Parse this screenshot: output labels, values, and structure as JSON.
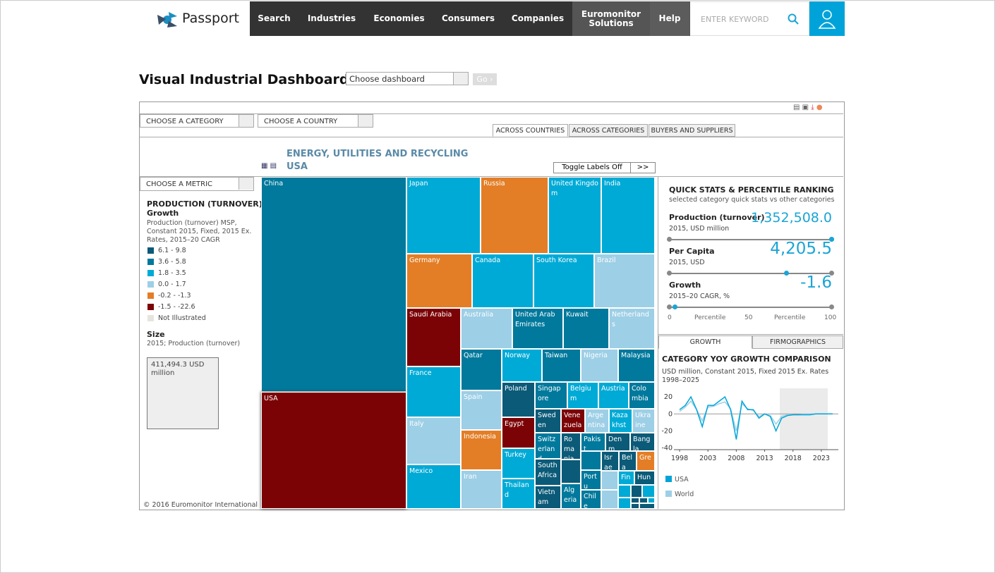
{
  "header": {
    "logo": "Passport",
    "nav": [
      "Search",
      "Industries",
      "Economies",
      "Consumers",
      "Companies",
      "Euromonitor Solutions",
      "Help"
    ],
    "search_placeholder": "ENTER KEYWORD"
  },
  "dashboard": {
    "title": "Visual Industrial Dashboard",
    "select": "Choose dashboard",
    "go": "Go ›"
  },
  "controls": {
    "category": "CHOOSE A CATEGORY",
    "country": "CHOOSE A COUNTRY",
    "tabs": [
      "ACROSS COUNTRIES",
      "ACROSS CATEGORIES",
      "BUYERS AND SUPPLIERS"
    ]
  },
  "treemap": {
    "industry": "ENERGY, UTILITIES AND RECYCLING",
    "country": "USA",
    "toggle": "Toggle Labels Off",
    "more": ">>",
    "tiles": [
      {
        "label": "China",
        "color": "#00799c"
      },
      {
        "label": "USA",
        "color": "#7b0306"
      },
      {
        "label": "Japan",
        "color": "#00aad6"
      },
      {
        "label": "Russia",
        "color": "#e37e26"
      },
      {
        "label": "United Kingdom",
        "color": "#00aad6"
      },
      {
        "label": "India",
        "color": "#00aad6"
      },
      {
        "label": "Germany",
        "color": "#e37e26"
      },
      {
        "label": "Canada",
        "color": "#00aad6"
      },
      {
        "label": "South Korea",
        "color": "#00aad6"
      },
      {
        "label": "Brazil",
        "color": "#9dcfe6"
      },
      {
        "label": "Saudi Arabia",
        "color": "#7b0306"
      },
      {
        "label": "Australia",
        "color": "#9dcfe6"
      },
      {
        "label": "United Arab Emirates",
        "color": "#00799c"
      },
      {
        "label": "Kuwait",
        "color": "#00799c"
      },
      {
        "label": "Netherlands",
        "color": "#9dcfe6"
      },
      {
        "label": "France",
        "color": "#00aad6"
      },
      {
        "label": "Qatar",
        "color": "#00799c"
      },
      {
        "label": "Norway",
        "color": "#00aad6"
      },
      {
        "label": "Taiwan",
        "color": "#00799c"
      },
      {
        "label": "Nigeria",
        "color": "#9dcfe6"
      },
      {
        "label": "Malaysia",
        "color": "#00799c"
      },
      {
        "label": "Italy",
        "color": "#9dcfe6"
      },
      {
        "label": "Spain",
        "color": "#9dcfe6"
      },
      {
        "label": "Poland",
        "color": "#0b5a78"
      },
      {
        "label": "Singapore",
        "color": "#00799c"
      },
      {
        "label": "Belgium",
        "color": "#00aad6"
      },
      {
        "label": "Austria",
        "color": "#00aad6"
      },
      {
        "label": "Colombia",
        "color": "#00799c"
      },
      {
        "label": "Indonesia",
        "color": "#e37e26"
      },
      {
        "label": "Egypt",
        "color": "#7b0306"
      },
      {
        "label": "Sweden",
        "color": "#0b5a78"
      },
      {
        "label": "Venezuela",
        "color": "#7b0306"
      },
      {
        "label": "Argentina",
        "color": "#9dcfe6"
      },
      {
        "label": "Kazakhstan",
        "color": "#00aad6"
      },
      {
        "label": "Ukraine",
        "color": "#9dcfe6"
      },
      {
        "label": "Mexico",
        "color": "#00aad6"
      },
      {
        "label": "Iran",
        "color": "#9dcfe6"
      },
      {
        "label": "Turkey",
        "color": "#00aad6"
      },
      {
        "label": "Switzerland",
        "color": "#00799c"
      },
      {
        "label": "Romania",
        "color": "#0b5a78"
      },
      {
        "label": "Pakist",
        "color": "#00799c"
      },
      {
        "label": "Denm",
        "color": "#0b5a78"
      },
      {
        "label": "Bangla",
        "color": "#0b5a78"
      },
      {
        "label": "Thailand",
        "color": "#00aad6"
      },
      {
        "label": "South Africa",
        "color": "#0b5a78"
      },
      {
        "label": "Portu",
        "color": "#00799c"
      },
      {
        "label": "Israe",
        "color": "#0b5a78"
      },
      {
        "label": "Bela",
        "color": "#0b5a78"
      },
      {
        "label": "Gre",
        "color": "#e37e26"
      },
      {
        "label": "Vietnam",
        "color": "#0b5a78"
      },
      {
        "label": "Algeria",
        "color": "#00799c"
      },
      {
        "label": "Chile",
        "color": "#00799c"
      },
      {
        "label": "Finla",
        "color": "#00aad6"
      },
      {
        "label": "Hun",
        "color": "#0b5a78"
      }
    ]
  },
  "legend_panel": {
    "metric": "CHOOSE A METRIC",
    "heading": "PRODUCTION (TURNOVER)",
    "subheading": "Growth",
    "description": "Production (turnover) MSP, Constant 2015, Fixed, 2015 Ex. Rates, 2015–20 CAGR",
    "classes": [
      {
        "label": "6.1 - 9.8",
        "color": "#0b5a78"
      },
      {
        "label": "3.6 - 5.8",
        "color": "#00799c"
      },
      {
        "label": "1.8 - 3.5",
        "color": "#00aad6"
      },
      {
        "label": "0.0 - 1.7",
        "color": "#9dcfe6"
      },
      {
        "label": "-0.2 - -1.3",
        "color": "#e37e26"
      },
      {
        "label": "-1.5 - -22.6",
        "color": "#7b0306"
      },
      {
        "label": "Not Illustrated",
        "color": "#e6e4de"
      }
    ],
    "size_heading": "Size",
    "size_description": "2015; Production (turnover)",
    "size_sample": "411,494.3 USD million",
    "copyright": "© 2016 Euromonitor International"
  },
  "quick_stats": {
    "title": "QUICK STATS & PERCENTILE RANKING",
    "subtitle": "selected category quick stats vs other categories",
    "stats": [
      {
        "name": "Production (turnover)",
        "unit": "2015, USD million",
        "value": "1,352,508.0"
      },
      {
        "name": "Per Capita",
        "unit": "2015, USD",
        "value": "4,205.5"
      },
      {
        "name": "Growth",
        "unit": "2015–20 CAGR, %",
        "value": "-1.6"
      }
    ],
    "scale": [
      "0",
      "Percentile",
      "50",
      "Percentile",
      "100"
    ]
  },
  "growth_tabs": [
    "GROWTH",
    "FIRMOGRAPHICS"
  ],
  "chart_data": {
    "type": "line",
    "title": "CATEGORY YOY GROWTH COMPARISON",
    "subtitle": "USD million, Constant 2015, Fixed 2015 Ex. Rates",
    "period": "1998–2025",
    "x": [
      1998,
      1999,
      2000,
      2001,
      2002,
      2003,
      2004,
      2005,
      2006,
      2007,
      2008,
      2009,
      2010,
      2011,
      2012,
      2013,
      2014,
      2015,
      2016,
      2017,
      2018,
      2019,
      2020,
      2021,
      2022,
      2023,
      2024,
      2025
    ],
    "series": [
      {
        "name": "USA",
        "color": "#00a5d8",
        "values": [
          5,
          10,
          20,
          5,
          -15,
          10,
          10,
          15,
          20,
          5,
          -30,
          15,
          5,
          5,
          -5,
          0,
          -3,
          -20,
          -5,
          -2,
          -1,
          -1,
          -1,
          -1,
          0,
          0,
          0,
          0
        ]
      },
      {
        "name": "World",
        "color": "#9dcfe6",
        "values": [
          3,
          8,
          15,
          5,
          -8,
          8,
          9,
          12,
          14,
          6,
          -20,
          12,
          6,
          4,
          -3,
          0,
          -2,
          -12,
          -3,
          -1,
          -1,
          -1,
          0,
          0,
          0,
          0,
          0,
          0
        ]
      }
    ],
    "xlim": [
      1997,
      2026
    ],
    "ylim": [
      -42,
      30
    ],
    "xticks": [
      1998,
      2003,
      2008,
      2013,
      2018,
      2023
    ],
    "yticks": [
      20,
      0,
      -20,
      -40
    ]
  }
}
